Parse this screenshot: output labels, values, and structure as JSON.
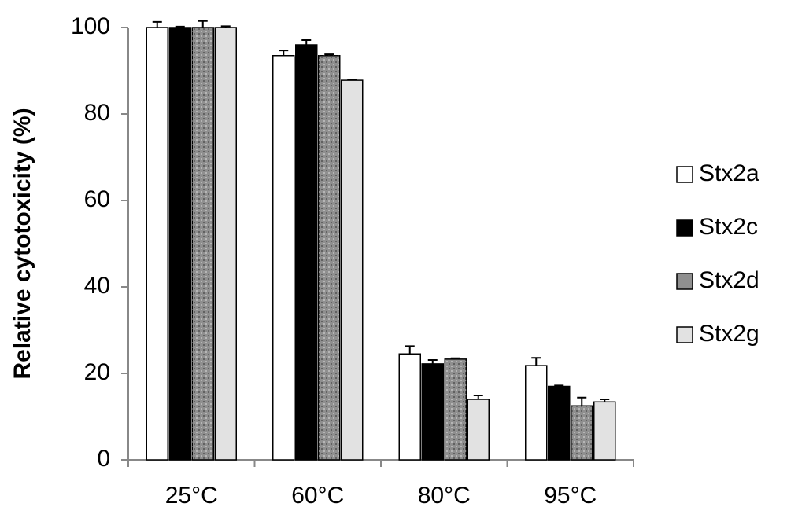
{
  "chart_data": {
    "type": "bar",
    "y_label": "Relative cytotoxicity (%)",
    "categories": [
      "25°C",
      "60°C",
      "80°C",
      "95°C"
    ],
    "series": [
      {
        "name": "Stx2a",
        "color": "#ffffff",
        "values": [
          100,
          93.5,
          24.5,
          21.8
        ],
        "errors": [
          1.3,
          1.2,
          1.8,
          1.8
        ]
      },
      {
        "name": "Stx2c",
        "color": "#000000",
        "values": [
          100,
          96,
          22.2,
          17
        ],
        "errors": [
          0.2,
          1.1,
          0.9,
          0.2
        ]
      },
      {
        "name": "Stx2d",
        "color": "#8f8f8f",
        "values": [
          100,
          93.5,
          23.3,
          12.5
        ],
        "errors": [
          1.5,
          0.3,
          0.2,
          1.9
        ]
      },
      {
        "name": "Stx2g",
        "color": "#e2e2e2",
        "values": [
          100,
          87.8,
          14,
          13.4
        ],
        "errors": [
          0.3,
          0.2,
          0.9,
          0.6
        ]
      }
    ],
    "ylim": [
      0,
      100
    ],
    "yticks": [
      0,
      20,
      40,
      60,
      80,
      100
    ],
    "legend": "right"
  }
}
